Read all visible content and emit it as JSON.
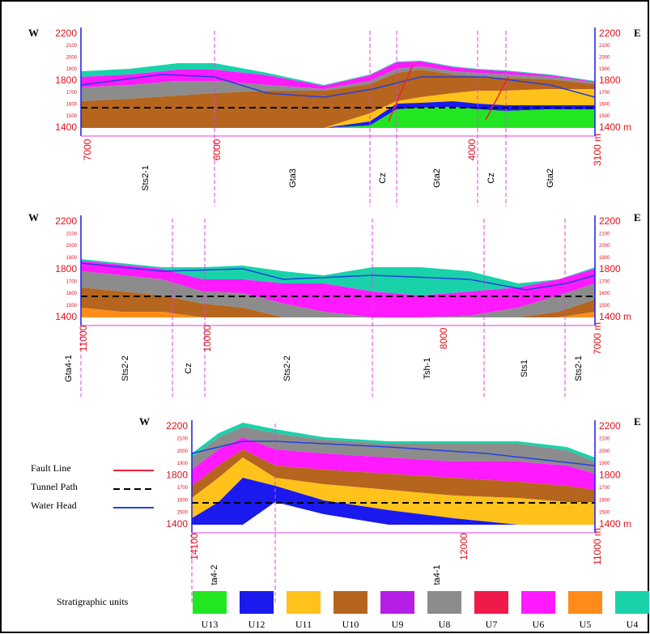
{
  "panels": [
    {
      "west": "W",
      "east": "E",
      "left_ticks": [
        "2200",
        "2100",
        "2000",
        "1900",
        "1800",
        "1700",
        "1600",
        "1500",
        "1400"
      ],
      "right_ticks": [
        "2200",
        "2100",
        "2000",
        "1900",
        "1800",
        "1700",
        "1600",
        "1500",
        "1400 m"
      ],
      "distance_labels": [
        "7000",
        "6000",
        "4000",
        "3100 m"
      ],
      "units": [
        "Sts2-1",
        "Gta3",
        "Cz",
        "Gta2",
        "Cz",
        "Gta2"
      ]
    },
    {
      "west": "W",
      "east": "E",
      "left_ticks": [
        "2200",
        "2100",
        "2000",
        "1900",
        "1800",
        "1700",
        "1600",
        "1500",
        "1400"
      ],
      "right_ticks": [
        "2200",
        "2100",
        "2000",
        "1900",
        "1800",
        "1700",
        "1600",
        "1500",
        "1400 m"
      ],
      "distance_labels": [
        "11000",
        "10000",
        "8000",
        "7000 m"
      ],
      "units": [
        "Gta4-1",
        "Sts2-2",
        "Cz",
        "Sts2-2",
        "Tsh-1",
        "Sts1",
        "Sts2-1"
      ]
    },
    {
      "west": "W",
      "east": "E",
      "left_ticks": [
        "2200",
        "2100",
        "2000",
        "1900",
        "1800",
        "1700",
        "1600",
        "1500",
        "1400"
      ],
      "right_ticks": [
        "2200",
        "2100",
        "2000",
        "1900",
        "1800",
        "1700",
        "1600",
        "1500",
        "1400 m"
      ],
      "distance_labels": [
        "14100",
        "12000",
        "11000 m"
      ],
      "units": [
        "ta4-2",
        "ta4-1"
      ]
    }
  ],
  "legend": {
    "items": [
      {
        "label": "Fault Line",
        "color": "#f0203a"
      },
      {
        "label": "Tunnel Path",
        "color": "#000000"
      },
      {
        "label": "Water Head",
        "color": "#2040e0"
      }
    ]
  },
  "stratigraphy": {
    "title": "Stratigraphic units",
    "items": [
      {
        "name": "U13",
        "color": "#22e622"
      },
      {
        "name": "U12",
        "color": "#1a1aee"
      },
      {
        "name": "U11",
        "color": "#ffc21a"
      },
      {
        "name": "U10",
        "color": "#b5651d"
      },
      {
        "name": "U9",
        "color": "#b41ee6"
      },
      {
        "name": "U8",
        "color": "#8c8c8c"
      },
      {
        "name": "U7",
        "color": "#ee1a4a"
      },
      {
        "name": "U6",
        "color": "#ff1aff"
      },
      {
        "name": "U5",
        "color": "#ff8c1a"
      },
      {
        "name": "U4",
        "color": "#1ad2aa"
      }
    ]
  }
}
